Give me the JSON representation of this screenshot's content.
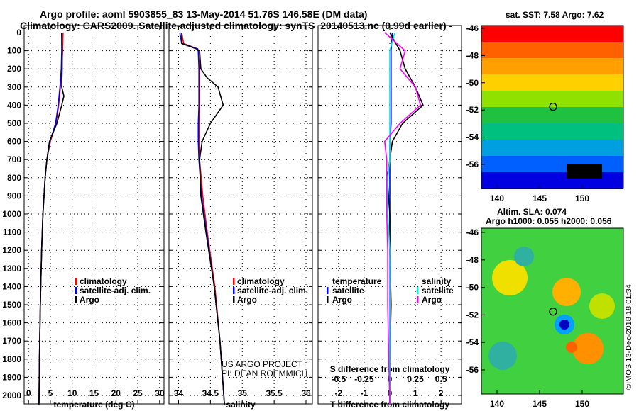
{
  "title_line1": "Argo profile: aoml 5903855_83 13-May-2014 51.76S 146.58E (DM data)",
  "title_line2": "Climatology: CARS2009. Satellite-adjusted climatology: synTS_20140513.nc (0.99d earlier) -",
  "map1_title": "sat. SST: 7.58 Argo: 7.62",
  "map2_title1": "Altim. SLA: 0.074",
  "map2_title2": "Argo h1000: 0.055 h2000: 0.056",
  "credit": "US ARGO PROJECT",
  "pi": "PI: DEAN ROEMMICH",
  "timestamp": "©IMOS 13-Dec-2018 18:01:34",
  "legend1": [
    "climatology",
    "satellite-adj. clim.",
    "Argo"
  ],
  "legend3": {
    "temp_head": "temperature",
    "sal_head": "salinity",
    "items": [
      "satellite",
      "Argo"
    ]
  },
  "colors": {
    "clim": "#ff0000",
    "sat": "#0000ff",
    "argo": "#000000",
    "s_sat": "#00e5ee",
    "s_argo": "#ff00ff"
  },
  "chart_data": [
    {
      "type": "line",
      "xlabel": "temperature (deg C)",
      "xlim": [
        -1,
        31
      ],
      "xticks": [
        0,
        5,
        10,
        15,
        20,
        25,
        30
      ],
      "ylim": [
        2050,
        0
      ],
      "yticks": [
        0,
        100,
        200,
        300,
        400,
        500,
        600,
        700,
        800,
        900,
        1000,
        1100,
        1200,
        1300,
        1400,
        1500,
        1600,
        1700,
        1800,
        1900,
        2000
      ],
      "depth": [
        0,
        100,
        200,
        300,
        350,
        400,
        500,
        600,
        700,
        800,
        1000,
        1200,
        1500,
        1800,
        2050
      ],
      "series": [
        {
          "name": "climatology",
          "values": [
            7.9,
            7.8,
            7.6,
            7.3,
            7.1,
            6.9,
            6.3,
            5.0,
            4.2,
            3.8,
            3.3,
            3.0,
            2.7,
            2.5,
            2.4
          ]
        },
        {
          "name": "satellite-adj. clim.",
          "values": [
            7.6,
            7.6,
            7.5,
            7.2,
            7.0,
            6.8,
            6.2,
            4.9,
            4.2,
            3.8,
            3.3,
            3.0,
            2.7,
            2.5,
            2.4
          ]
        },
        {
          "name": "Argo",
          "values": [
            7.6,
            7.7,
            7.7,
            7.6,
            8.1,
            7.6,
            6.5,
            4.8,
            4.2,
            3.8,
            3.3,
            3.0,
            2.7,
            2.5,
            2.4
          ]
        }
      ]
    },
    {
      "type": "line",
      "xlabel": "salinity",
      "xlim": [
        33.85,
        36.1
      ],
      "xticks": [
        34,
        34.5,
        35,
        35.5,
        36
      ],
      "ylim": [
        2050,
        0
      ],
      "depth": [
        0,
        60,
        90,
        100,
        200,
        250,
        300,
        400,
        500,
        600,
        700,
        900,
        1100,
        1400,
        1700,
        2050
      ],
      "series": [
        {
          "name": "climatology",
          "values": [
            34.05,
            34.08,
            34.3,
            34.31,
            34.33,
            34.33,
            34.33,
            34.33,
            34.32,
            34.32,
            34.33,
            34.38,
            34.45,
            34.57,
            34.65,
            34.72
          ]
        },
        {
          "name": "satellite-adj. clim.",
          "values": [
            34.02,
            34.05,
            34.3,
            34.31,
            34.32,
            34.32,
            34.32,
            34.32,
            34.31,
            34.31,
            34.32,
            34.36,
            34.44,
            34.56,
            34.65,
            34.72
          ]
        },
        {
          "name": "Argo",
          "values": [
            34.05,
            34.05,
            34.28,
            34.33,
            34.35,
            34.45,
            34.62,
            34.7,
            34.5,
            34.37,
            34.33,
            34.35,
            34.43,
            34.56,
            34.65,
            34.72
          ]
        }
      ]
    },
    {
      "type": "line",
      "xlabel": "T difference from climatology",
      "x2label": "S difference from climatology",
      "xlim": [
        -2.8,
        2.8
      ],
      "xticks": [
        -2,
        -1,
        0,
        1,
        2
      ],
      "x2ticks": [
        "-0.5",
        "-0.25",
        "0",
        "0.25",
        "0.5"
      ],
      "x2lim": [
        -0.7,
        0.7
      ],
      "ylim": [
        2050,
        0
      ],
      "depth": [
        0,
        100,
        200,
        300,
        400,
        500,
        600,
        700,
        800,
        1000,
        1200,
        1500,
        1800,
        2050
      ],
      "series": [
        {
          "name": "T satellite",
          "axis": "T",
          "values": [
            0.1,
            0.05,
            0.05,
            0.05,
            0.05,
            0.05,
            0.0,
            0.0,
            0.0,
            0.0,
            0.0,
            0.0,
            0.0,
            0.0
          ]
        },
        {
          "name": "T Argo",
          "axis": "T",
          "values": [
            0.0,
            0.4,
            0.6,
            1.0,
            1.3,
            0.5,
            0.1,
            0.0,
            -0.1,
            0.0,
            0.0,
            0.05,
            0.0,
            0.0
          ]
        },
        {
          "name": "S satellite",
          "axis": "S",
          "values": [
            0.05,
            0.0,
            0.0,
            0.0,
            0.0,
            0.0,
            0.0,
            0.0,
            -0.02,
            -0.02,
            0.0,
            0.0,
            0.0,
            0.0
          ]
        },
        {
          "name": "S Argo",
          "axis": "S",
          "values": [
            -0.05,
            0.15,
            0.1,
            0.25,
            0.3,
            0.1,
            -0.05,
            -0.03,
            -0.03,
            -0.03,
            -0.02,
            -0.02,
            -0.01,
            0.0
          ]
        }
      ]
    },
    {
      "type": "heatmap",
      "title": "sat. SST: 7.58 Argo: 7.62",
      "xticks": [
        140,
        145,
        150
      ],
      "yticks": [
        -46,
        -48,
        -50,
        -52,
        -54,
        -56
      ],
      "argo_position": [
        146.58,
        -51.76
      ]
    },
    {
      "type": "heatmap",
      "title": "Altim. SLA: 0.074",
      "xticks": [
        140,
        145,
        150
      ],
      "yticks": [
        -46,
        -48,
        -50,
        -52,
        -54,
        -56
      ],
      "argo_position": [
        146.58,
        -51.76
      ]
    }
  ]
}
